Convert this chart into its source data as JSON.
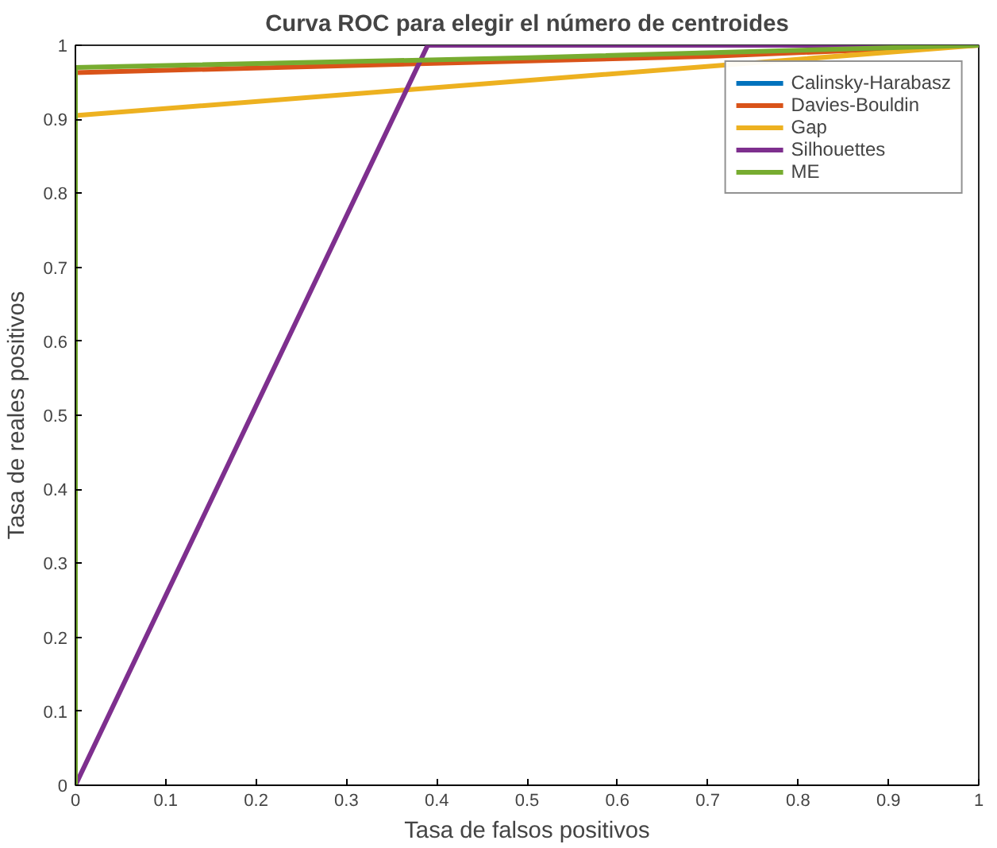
{
  "chart_data": {
    "type": "line",
    "title": "Curva ROC para elegir el número de centroides",
    "xlabel": "Tasa de falsos positivos",
    "ylabel": "Tasa de reales positivos",
    "xlim": [
      0,
      1
    ],
    "ylim": [
      0,
      1
    ],
    "xticks": [
      0,
      0.1,
      0.2,
      0.3,
      0.4,
      0.5,
      0.6,
      0.7,
      0.8,
      0.9,
      1
    ],
    "yticks": [
      0,
      0.1,
      0.2,
      0.3,
      0.4,
      0.5,
      0.6,
      0.7,
      0.8,
      0.9,
      1
    ],
    "grid": false,
    "legend": "top right",
    "marker": "none",
    "line_style": "solid",
    "series": [
      {
        "name": "Calinsky-Harabasz",
        "color": "#0072bd"
      },
      {
        "name": "Davies-Bouldin",
        "color": "#d95319",
        "x": [
          0,
          0,
          0.7,
          1
        ],
        "values": [
          0,
          0.963,
          0.985,
          1
        ]
      },
      {
        "name": "Gap",
        "color": "#edb120",
        "x": [
          0,
          0,
          1
        ],
        "values": [
          0,
          0.905,
          1
        ]
      },
      {
        "name": "Silhouettes",
        "color": "#7e2f8e",
        "x": [
          0,
          0.39,
          1
        ],
        "values": [
          0,
          1,
          1
        ]
      },
      {
        "name": "ME",
        "color": "#77ac30",
        "x": [
          0,
          0,
          0.5,
          1
        ],
        "values": [
          0,
          0.97,
          0.983,
          1
        ]
      }
    ]
  }
}
